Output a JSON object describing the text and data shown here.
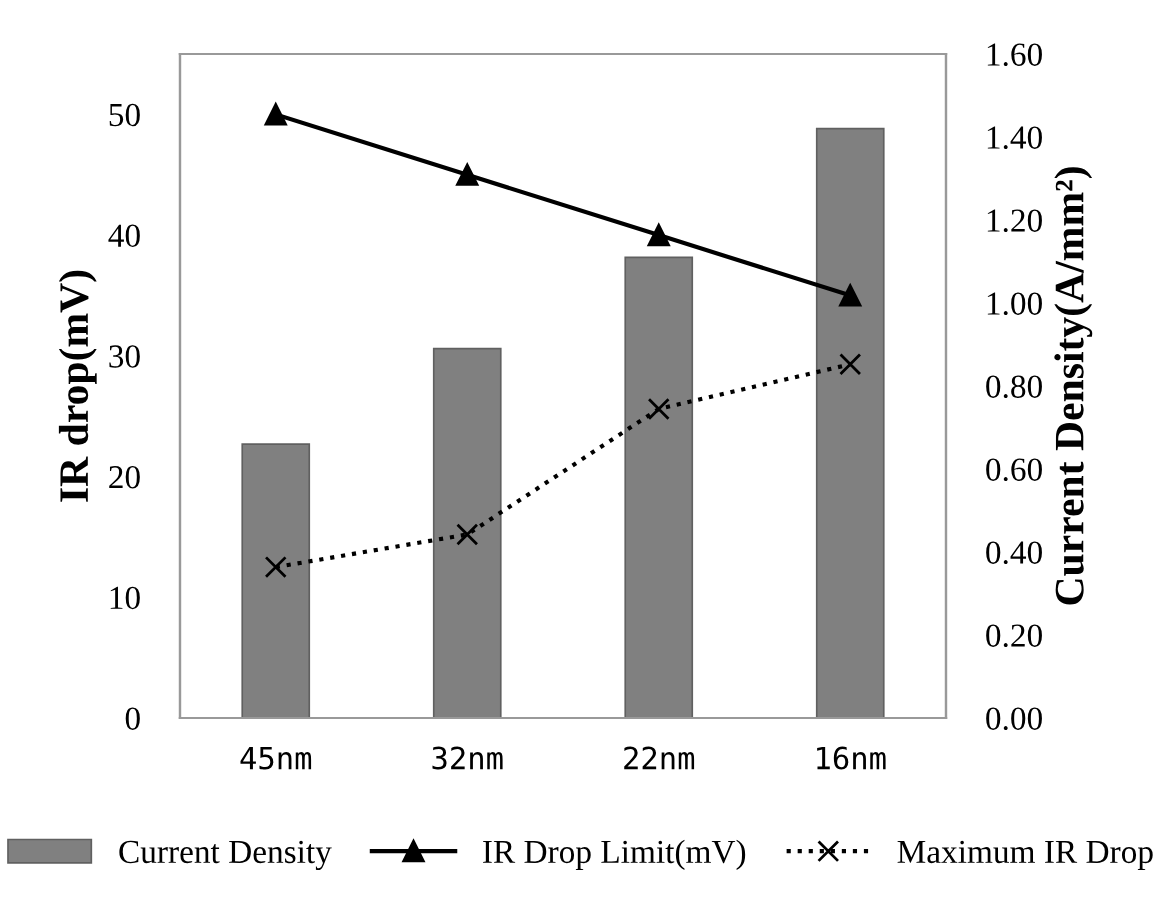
{
  "chart_data": {
    "type": "bar",
    "categories": [
      "45nm",
      "32nm",
      "22nm",
      "16nm"
    ],
    "ylabel": "IR drop(mV)",
    "y2label": "Current Density(A/mm²)",
    "series": [
      {
        "name": "Current Density",
        "axis": "y2",
        "color": "#808080",
        "values": [
          0.66,
          0.89,
          1.11,
          1.42
        ]
      },
      {
        "name": "IR Drop Limit(mV)",
        "type": "line",
        "color": "#000000",
        "marker": "triangle",
        "line_style": "solid",
        "values": [
          50,
          45,
          40,
          35
        ]
      },
      {
        "name": "Maximum IR Drop",
        "type": "line",
        "color": "#000000",
        "marker": "cross",
        "line_style": "dotted",
        "values": [
          12.5,
          15.2,
          25.6,
          29.3
        ]
      }
    ],
    "ylim": [
      0,
      55
    ],
    "yticks": [
      0,
      10,
      20,
      30,
      40,
      50
    ],
    "y2lim": [
      0,
      1.6
    ],
    "y2ticks": [
      {
        "value": 0,
        "label": "0.00"
      },
      {
        "value": 0.2,
        "label": "0.20"
      },
      {
        "value": 0.4,
        "label": "0.40"
      },
      {
        "value": 0.6,
        "label": "0.60"
      },
      {
        "value": 0.8,
        "label": "0.80"
      },
      {
        "value": 1.0,
        "label": "1.00"
      },
      {
        "value": 1.2,
        "label": "1.20"
      },
      {
        "value": 1.4,
        "label": "1.40"
      },
      {
        "value": 1.6,
        "label": "1.60"
      }
    ],
    "grid": false,
    "legend": "bottom"
  }
}
